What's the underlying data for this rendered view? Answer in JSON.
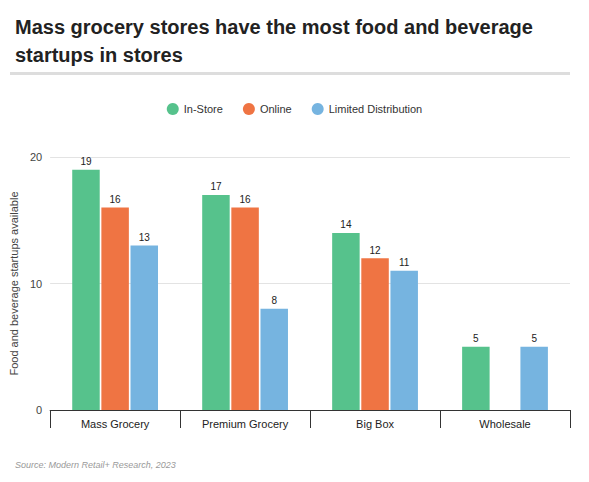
{
  "chart_data": {
    "type": "bar",
    "title": "Mass grocery stores have the most food and beverage startups in stores",
    "source": "Source: Modern Retail+ Research, 2023",
    "ylabel": "Food and beverage startups available",
    "categories": [
      "Mass Grocery",
      "Premium Grocery",
      "Big Box",
      "Wholesale"
    ],
    "series": [
      {
        "name": "In-Store",
        "color": "#56c28c",
        "values": [
          19,
          17,
          14,
          5
        ]
      },
      {
        "name": "Online",
        "color": "#ef7443",
        "values": [
          16,
          16,
          12,
          null
        ]
      },
      {
        "name": "Limited Distribution",
        "color": "#76b4e0",
        "values": [
          13,
          8,
          11,
          5
        ]
      }
    ],
    "ylim": [
      0,
      20
    ],
    "yticks": [
      0,
      10,
      20
    ],
    "grid": true,
    "legend": "top",
    "data_labels": true
  }
}
